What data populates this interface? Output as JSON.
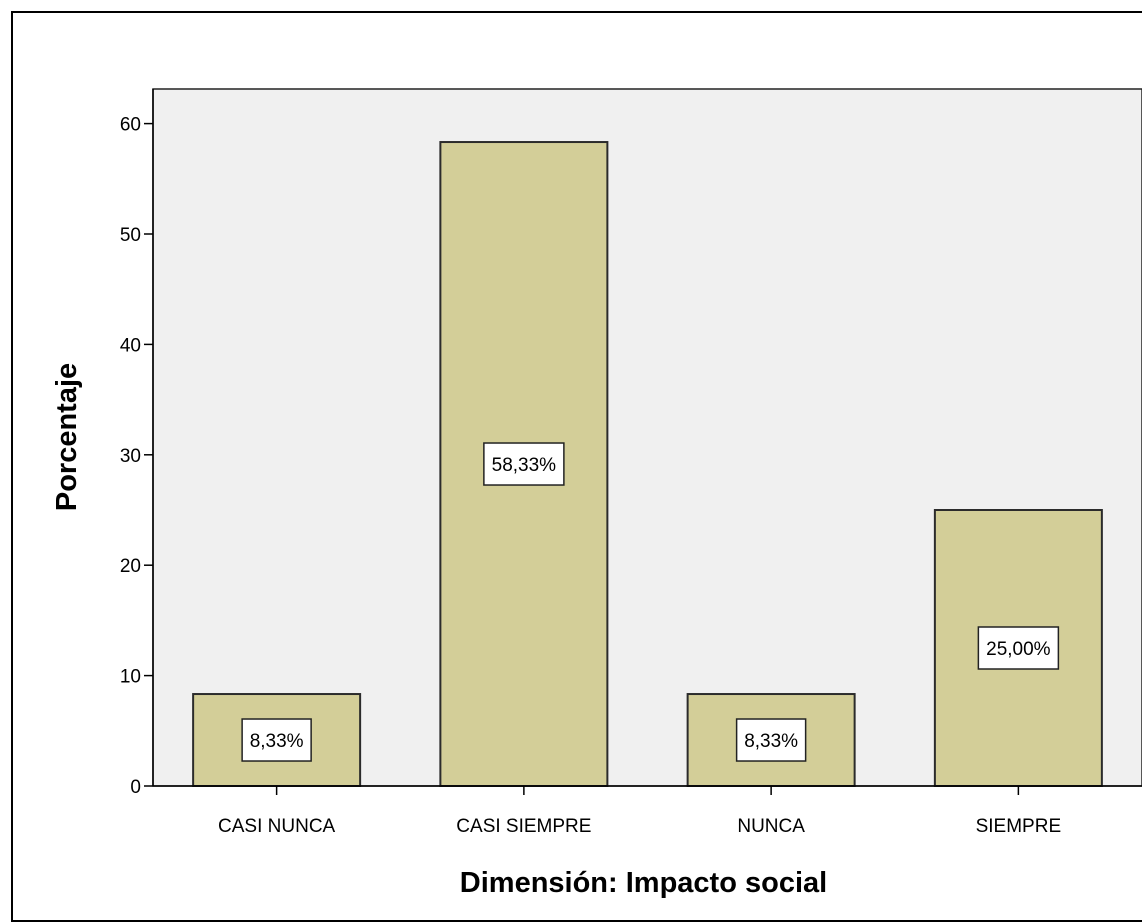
{
  "chart_data": {
    "type": "bar",
    "title": "",
    "xlabel": "Dimensión: Impacto social",
    "ylabel": "Porcentaje",
    "categories": [
      "CASI NUNCA",
      "CASI SIEMPRE",
      "NUNCA",
      "SIEMPRE"
    ],
    "values": [
      8.33,
      58.33,
      8.33,
      25.0
    ],
    "data_labels": [
      "8,33%",
      "58,33%",
      "8,33%",
      "25,00%"
    ],
    "ylim": [
      0,
      63
    ],
    "yticks": [
      0,
      10,
      20,
      30,
      40,
      50,
      60
    ],
    "grid": false,
    "legend": "none",
    "colors": {
      "bar_fill": "#d3ce98",
      "bar_stroke": "#2b2b2b",
      "plot_background": "#f0f0f0",
      "page_background": "#ffffff",
      "label_box_fill": "#ffffff"
    }
  }
}
